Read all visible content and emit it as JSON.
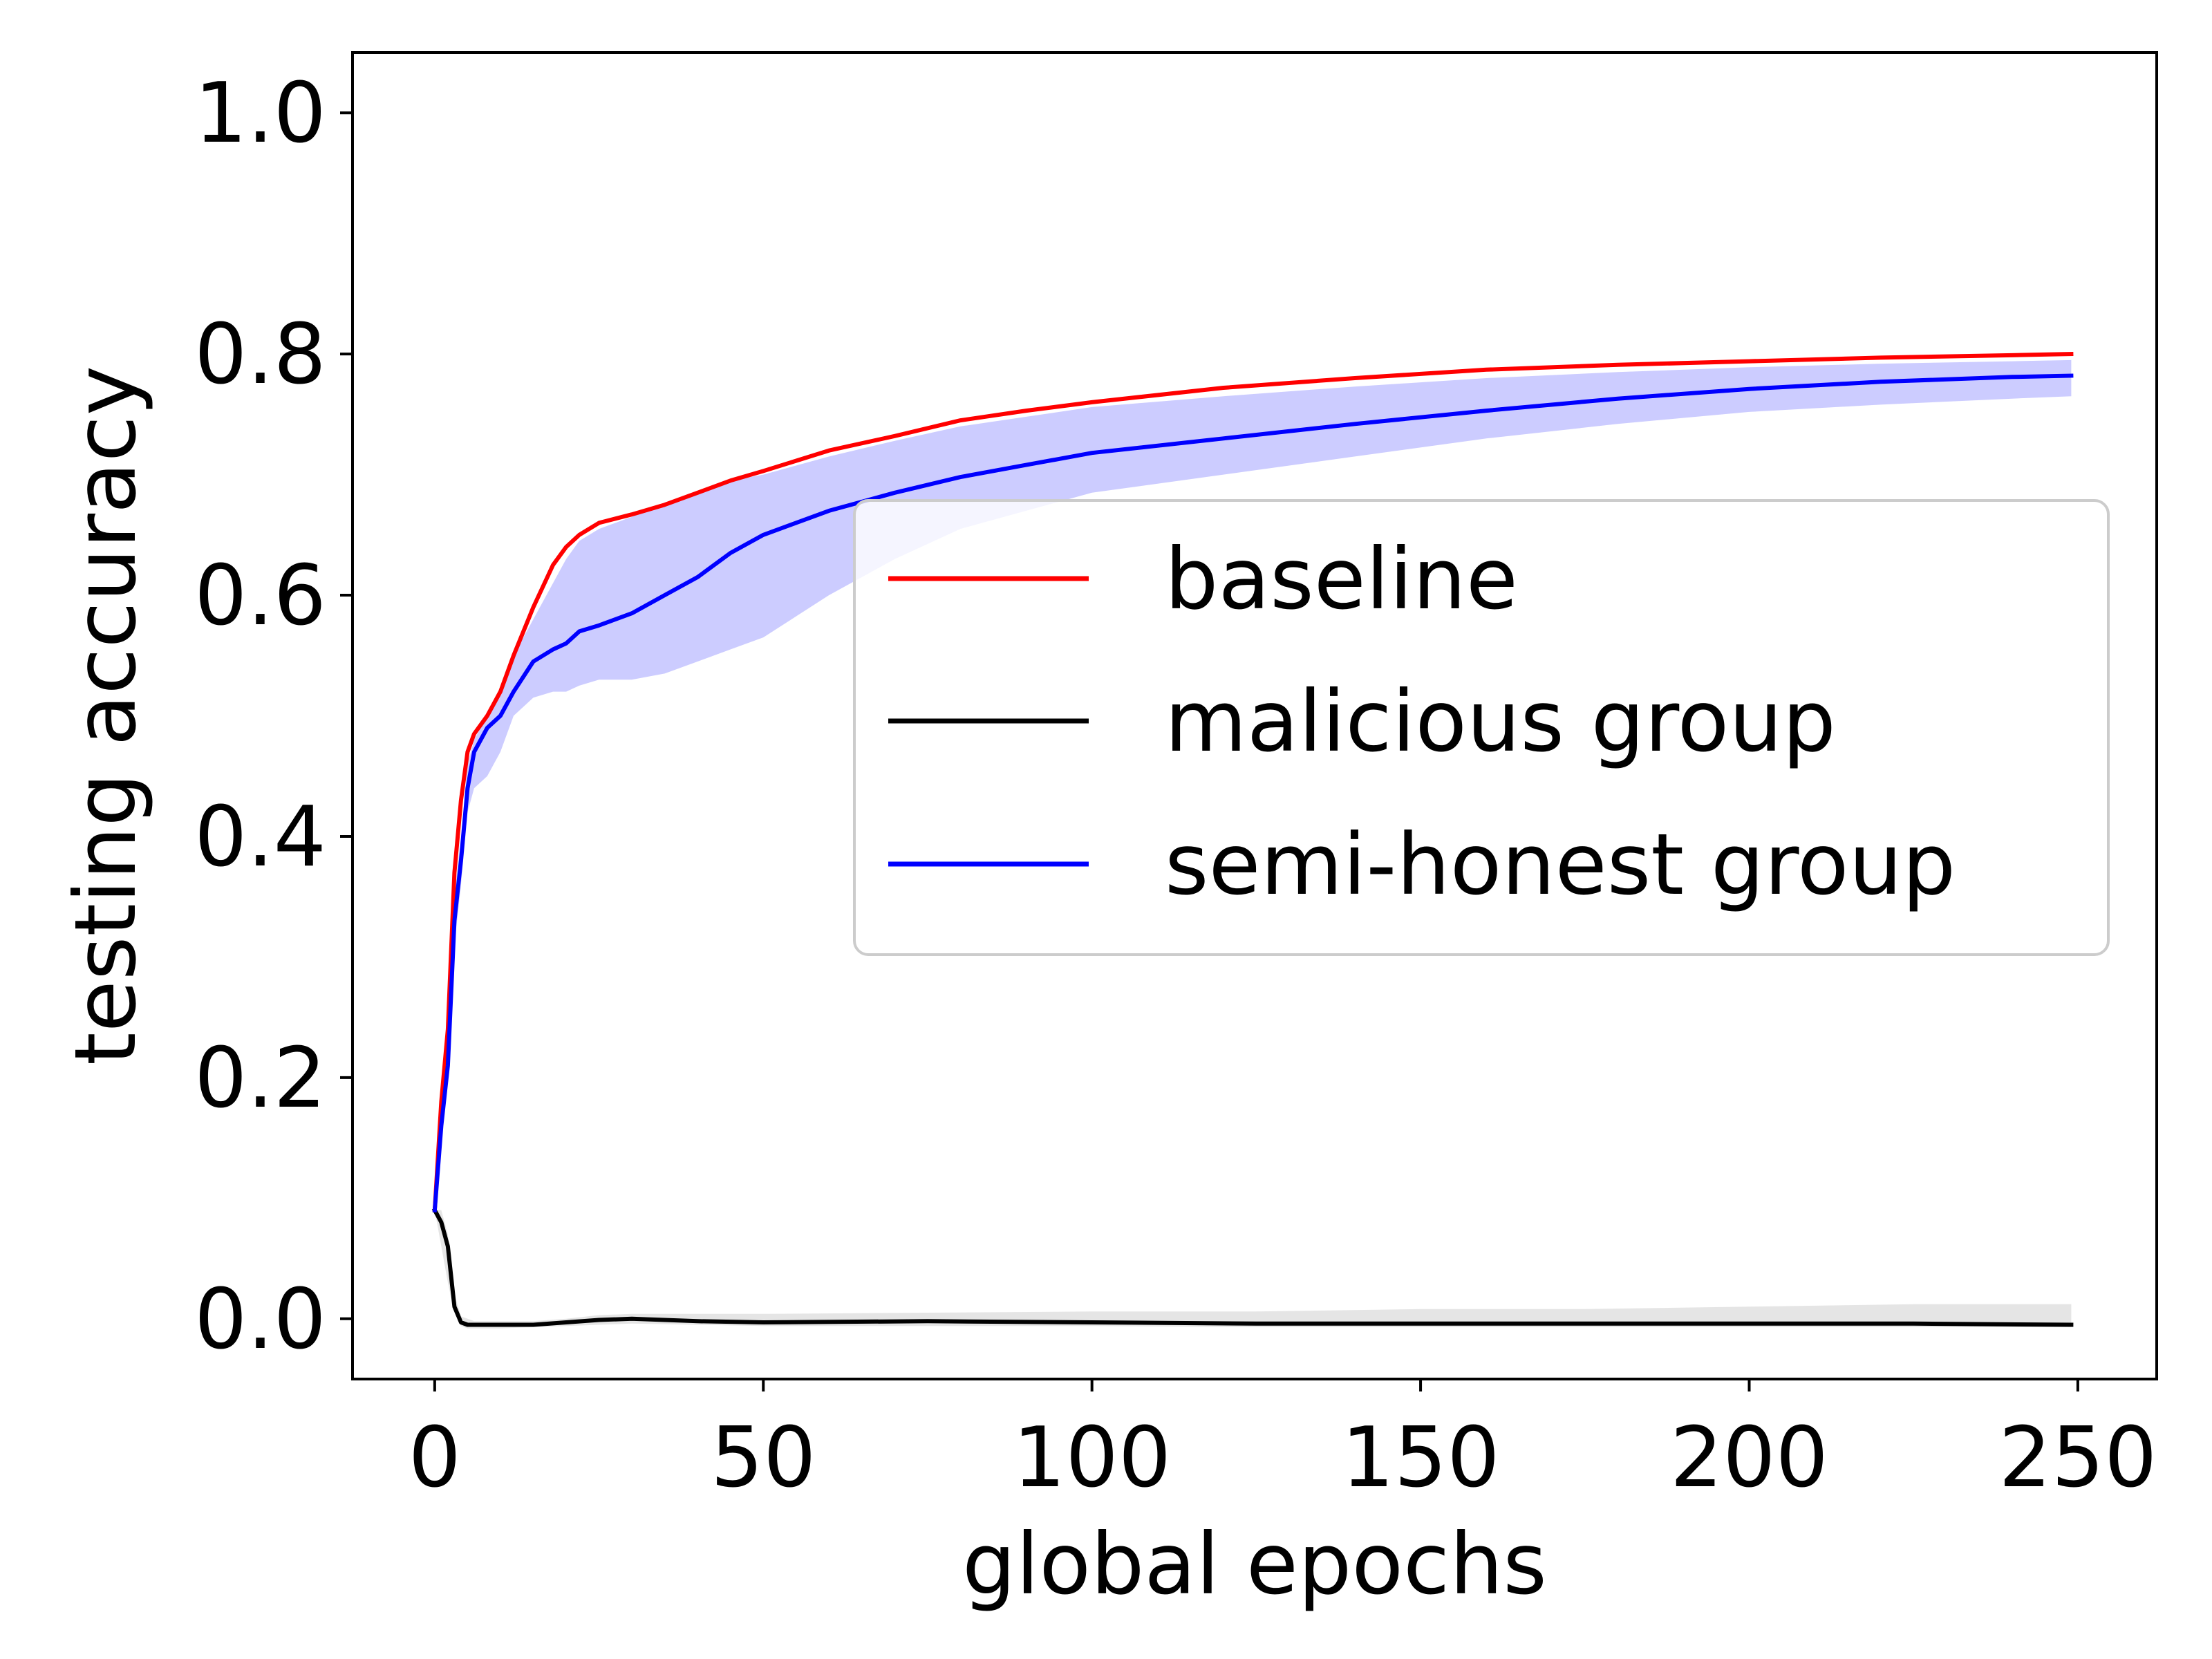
{
  "chart_data": {
    "type": "line",
    "title": "",
    "xlabel": "global epochs",
    "ylabel": "testing accuracy",
    "xlim": [
      -12.5,
      262
    ],
    "ylim": [
      -0.05,
      1.05
    ],
    "xticks": [
      0,
      50,
      100,
      150,
      200,
      250
    ],
    "xtick_labels": [
      "0",
      "50",
      "100",
      "150",
      "200",
      "250"
    ],
    "yticks": [
      0.0,
      0.2,
      0.4,
      0.6,
      0.8,
      1.0
    ],
    "ytick_labels": [
      "0.0",
      "0.2",
      "0.4",
      "0.6",
      "0.8",
      "1.0"
    ],
    "grid": false,
    "legend_position": "center-right",
    "series": [
      {
        "name": "baseline",
        "color": "#ff0000",
        "band_color": "#ff0000",
        "x": [
          0,
          1,
          2,
          3,
          4,
          5,
          6,
          8,
          10,
          12,
          15,
          18,
          20,
          22,
          25,
          30,
          35,
          40,
          45,
          50,
          60,
          70,
          80,
          90,
          100,
          120,
          140,
          160,
          180,
          200,
          220,
          240,
          249
        ],
        "y": [
          0.09,
          0.18,
          0.24,
          0.37,
          0.43,
          0.47,
          0.485,
          0.5,
          0.52,
          0.55,
          0.59,
          0.625,
          0.64,
          0.65,
          0.66,
          0.667,
          0.675,
          0.685,
          0.695,
          0.703,
          0.72,
          0.732,
          0.745,
          0.753,
          0.76,
          0.772,
          0.78,
          0.787,
          0.791,
          0.794,
          0.797,
          0.799,
          0.8
        ],
        "lower": [
          0.09,
          0.18,
          0.24,
          0.37,
          0.43,
          0.47,
          0.485,
          0.5,
          0.52,
          0.55,
          0.59,
          0.625,
          0.64,
          0.65,
          0.66,
          0.667,
          0.675,
          0.685,
          0.695,
          0.703,
          0.72,
          0.732,
          0.745,
          0.753,
          0.76,
          0.772,
          0.78,
          0.787,
          0.791,
          0.794,
          0.797,
          0.799,
          0.8
        ],
        "upper": [
          0.09,
          0.18,
          0.24,
          0.37,
          0.43,
          0.47,
          0.485,
          0.5,
          0.52,
          0.55,
          0.59,
          0.625,
          0.64,
          0.65,
          0.66,
          0.667,
          0.675,
          0.685,
          0.695,
          0.703,
          0.72,
          0.732,
          0.745,
          0.753,
          0.76,
          0.772,
          0.78,
          0.787,
          0.791,
          0.794,
          0.797,
          0.799,
          0.8
        ]
      },
      {
        "name": "malicious group",
        "color": "#000000",
        "band_color": "#7f7f7f",
        "x": [
          0,
          1,
          2,
          3,
          4,
          5,
          6,
          8,
          10,
          15,
          20,
          25,
          30,
          40,
          50,
          75,
          100,
          125,
          150,
          175,
          200,
          225,
          249
        ],
        "y": [
          0.09,
          0.08,
          0.06,
          0.01,
          -0.003,
          -0.005,
          -0.005,
          -0.005,
          -0.005,
          -0.005,
          -0.003,
          -0.001,
          0.0,
          -0.002,
          -0.003,
          -0.002,
          -0.003,
          -0.004,
          -0.004,
          -0.004,
          -0.004,
          -0.004,
          -0.005
        ],
        "lower": [
          0.09,
          0.06,
          0.03,
          0.005,
          -0.006,
          -0.008,
          -0.008,
          -0.008,
          -0.008,
          -0.007,
          -0.006,
          -0.005,
          -0.004,
          -0.005,
          -0.006,
          -0.006,
          -0.006,
          -0.007,
          -0.007,
          -0.007,
          -0.007,
          -0.007,
          -0.007
        ],
        "upper": [
          0.09,
          0.09,
          0.07,
          0.02,
          0.002,
          0.0,
          -0.002,
          -0.002,
          -0.002,
          -0.002,
          0.0,
          0.003,
          0.004,
          0.004,
          0.004,
          0.005,
          0.006,
          0.006,
          0.008,
          0.008,
          0.01,
          0.012,
          0.012
        ]
      },
      {
        "name": "semi-honest group",
        "color": "#0000ff",
        "band_color": "#0000ff",
        "x": [
          0,
          1,
          2,
          3,
          4,
          5,
          6,
          8,
          10,
          12,
          15,
          18,
          20,
          22,
          25,
          30,
          35,
          40,
          45,
          50,
          60,
          70,
          80,
          90,
          100,
          120,
          140,
          160,
          180,
          200,
          220,
          240,
          249
        ],
        "y": [
          0.09,
          0.16,
          0.21,
          0.33,
          0.38,
          0.44,
          0.47,
          0.49,
          0.5,
          0.52,
          0.545,
          0.555,
          0.56,
          0.57,
          0.575,
          0.585,
          0.6,
          0.615,
          0.635,
          0.65,
          0.67,
          0.685,
          0.698,
          0.708,
          0.718,
          0.73,
          0.742,
          0.753,
          0.763,
          0.771,
          0.777,
          0.781,
          0.782
        ],
        "lower": [
          0.09,
          0.15,
          0.2,
          0.31,
          0.36,
          0.42,
          0.44,
          0.45,
          0.47,
          0.5,
          0.515,
          0.52,
          0.52,
          0.525,
          0.53,
          0.53,
          0.535,
          0.545,
          0.555,
          0.565,
          0.6,
          0.63,
          0.655,
          0.67,
          0.685,
          0.7,
          0.715,
          0.73,
          0.742,
          0.752,
          0.758,
          0.763,
          0.765
        ],
        "upper": [
          0.09,
          0.17,
          0.23,
          0.35,
          0.4,
          0.46,
          0.48,
          0.5,
          0.52,
          0.55,
          0.58,
          0.61,
          0.63,
          0.645,
          0.655,
          0.665,
          0.675,
          0.685,
          0.695,
          0.7,
          0.715,
          0.728,
          0.74,
          0.748,
          0.756,
          0.765,
          0.773,
          0.78,
          0.785,
          0.789,
          0.792,
          0.794,
          0.795
        ]
      }
    ]
  }
}
